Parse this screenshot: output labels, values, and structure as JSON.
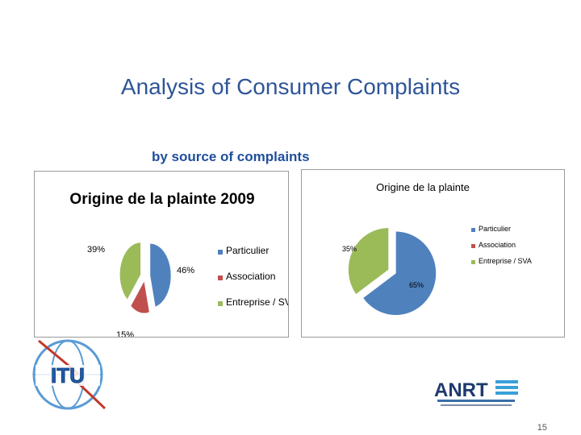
{
  "slide": {
    "title": "Analysis of Consumer Complaints",
    "subtitle": "by source of complaints",
    "page_number": "15"
  },
  "colors": {
    "title": "#2f5597",
    "subtitle": "#1f4e9c",
    "particulier": "#4f81bd",
    "association": "#c0504d",
    "entreprise": "#9bbb59"
  },
  "chart_data": [
    {
      "type": "pie",
      "title": "Origine de la plainte 2009",
      "categories": [
        "Particulier",
        "Association",
        "Entreprise / SVA"
      ],
      "values": [
        46,
        15,
        39
      ],
      "labels": [
        "46%",
        "15%",
        "39%"
      ],
      "legend": "right",
      "exploded": true
    },
    {
      "type": "pie",
      "title": "Origine de la plainte",
      "categories": [
        "Particulier",
        "Association",
        "Entreprise / SVA"
      ],
      "values": [
        65,
        0,
        35
      ],
      "labels": [
        "65%",
        "",
        "35%"
      ],
      "legend": "right",
      "exploded": true
    }
  ],
  "logos": {
    "itu": "ITU",
    "anrt": "ANRT"
  }
}
